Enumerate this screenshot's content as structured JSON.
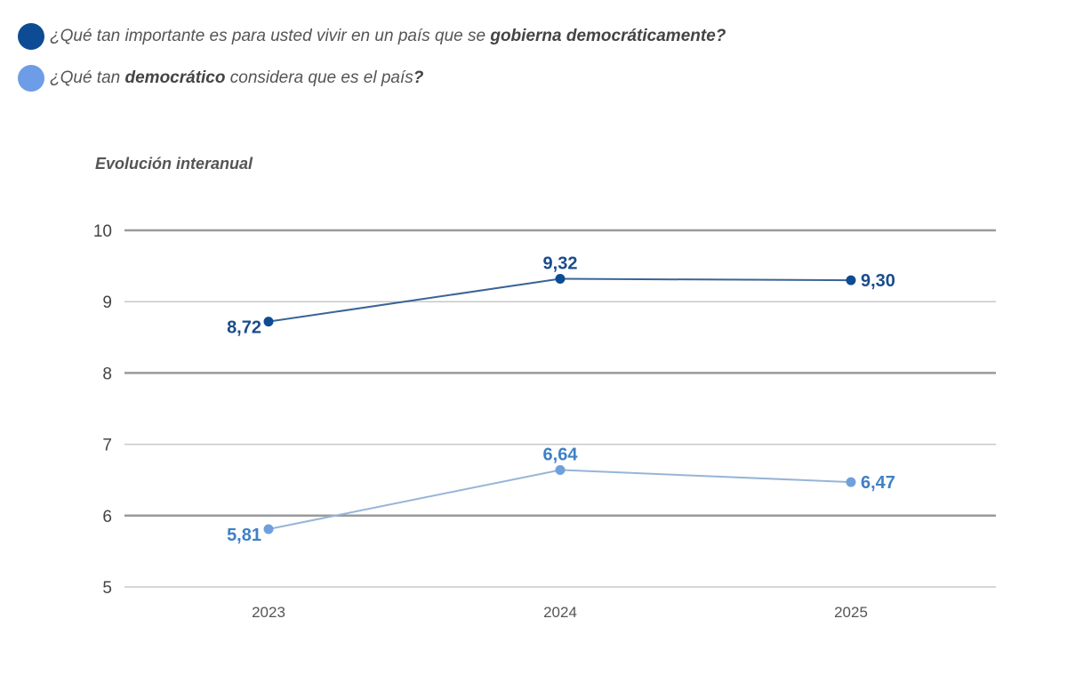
{
  "legend": [
    {
      "color": "#0d4c94",
      "parts": [
        {
          "text": "¿Qué tan importante es para usted vivir en un país que se ",
          "bold": false
        },
        {
          "text": "gobierna democráticamente?",
          "bold": true
        }
      ]
    },
    {
      "color": "#6d9de6",
      "parts": [
        {
          "text": "¿Qué tan ",
          "bold": false
        },
        {
          "text": "democrático",
          "bold": true
        },
        {
          "text": " considera que es el país",
          "bold": false
        },
        {
          "text": "?",
          "bold": true
        }
      ]
    }
  ],
  "chart_data": {
    "type": "line",
    "title": "",
    "subtitle": "Evolución interanual",
    "xlabel": "",
    "ylabel": "",
    "categories": [
      "2023",
      "2024",
      "2025"
    ],
    "ylim": [
      5,
      10
    ],
    "yticks": [
      "10",
      "9",
      "8",
      "7",
      "6",
      "5"
    ],
    "grid": true,
    "legend_position": "top-left",
    "series": [
      {
        "name": "¿Qué tan importante es para usted vivir en un país que se gobierna democráticamente?",
        "values": [
          8.72,
          9.32,
          9.3
        ],
        "labels": [
          "8,72",
          "9,32",
          "9,30"
        ],
        "color": "#0d4c94",
        "line_color": "#3a6496",
        "label_color": "#1a4c8c"
      },
      {
        "name": "¿Qué tan democrático considera que es el país?",
        "values": [
          5.81,
          6.64,
          6.47
        ],
        "labels": [
          "5,81",
          "6,64",
          "6,47"
        ],
        "color": "#6fa0dc",
        "line_color": "#97b5d6",
        "label_color": "#3f80c6"
      }
    ]
  }
}
